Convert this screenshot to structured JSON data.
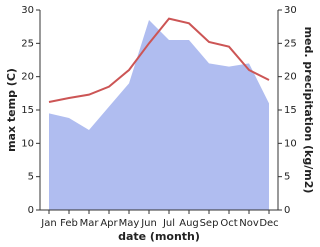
{
  "chart_data": {
    "type": "line-area",
    "x_label": "date (month)",
    "y_label": "max temp (C)",
    "y2_label": "med. precipitation (kg/m2)",
    "categories": [
      "Jan",
      "Feb",
      "Mar",
      "Apr",
      "May",
      "Jun",
      "Jul",
      "Aug",
      "Sep",
      "Oct",
      "Nov",
      "Dec"
    ],
    "series": [
      {
        "name": "max temp",
        "color": "#cc5555",
        "values": [
          16.2,
          16.8,
          17.3,
          18.5,
          21,
          25,
          28.7,
          28,
          25.2,
          24.5,
          21,
          19.5
        ]
      },
      {
        "name": "med. precipitation",
        "color": "#b0bdf0",
        "axis": "y2",
        "values": [
          14.5,
          13.8,
          12,
          15.5,
          19,
          28.5,
          25.5,
          25.5,
          22,
          21.5,
          22,
          16
        ]
      }
    ],
    "ylim": [
      0,
      30
    ],
    "yticks": [
      0,
      5,
      10,
      15,
      20,
      25,
      30
    ],
    "y2lim": [
      0,
      30
    ],
    "y2ticks": [
      0,
      5,
      10,
      15,
      20,
      25,
      30
    ]
  }
}
